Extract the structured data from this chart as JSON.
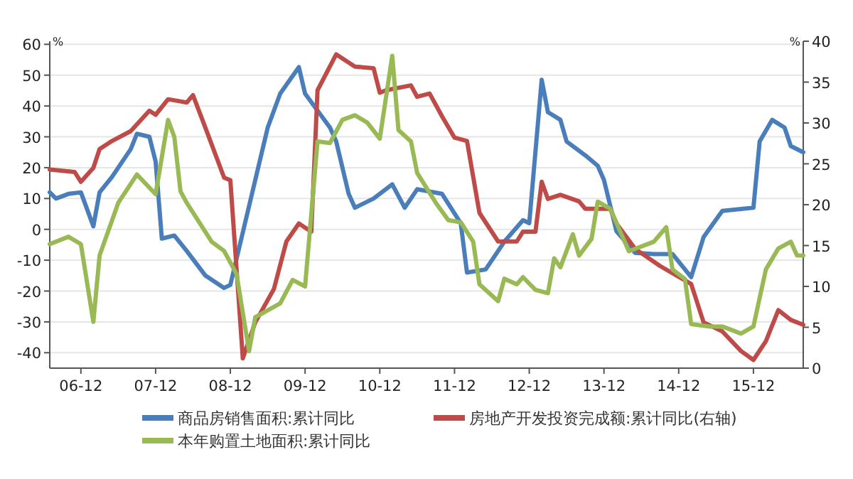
{
  "chart_data": {
    "type": "line",
    "ylabel": "%",
    "y2label": "%",
    "grid": "y",
    "legend": "bottom",
    "marker": "none",
    "line_style": "solid",
    "xlim": [
      "2006-07",
      "2016-08"
    ],
    "xticks": [
      {
        "value": "2006-12",
        "label": "06-12"
      },
      {
        "value": "2007-12",
        "label": "07-12"
      },
      {
        "value": "2008-12",
        "label": "08-12"
      },
      {
        "value": "2009-12",
        "label": "09-12"
      },
      {
        "value": "2010-12",
        "label": "10-12"
      },
      {
        "value": "2011-12",
        "label": "11-12"
      },
      {
        "value": "2012-12",
        "label": "12-12"
      },
      {
        "value": "2013-12",
        "label": "13-12"
      },
      {
        "value": "2014-12",
        "label": "14-12"
      },
      {
        "value": "2015-12",
        "label": "15-12"
      }
    ],
    "ylim": [
      -45,
      61
    ],
    "yticks": [
      -40,
      -30,
      -20,
      -10,
      0,
      10,
      20,
      30,
      40,
      50,
      60
    ],
    "y2lim": [
      0,
      40
    ],
    "y2ticks": [
      0,
      5,
      10,
      15,
      20,
      25,
      30,
      35,
      40
    ],
    "series": [
      {
        "name": "商品房销售面积:累计同比",
        "color": "#4a7ebb",
        "x": [
          "2006-07",
          "2006-08",
          "2006-10",
          "2006-12",
          "2007-02",
          "2007-03",
          "2007-05",
          "2007-08",
          "2007-09",
          "2007-11",
          "2007-12",
          "2008-01",
          "2008-03",
          "2008-05",
          "2008-08",
          "2008-11",
          "2008-12",
          "2009-04",
          "2009-06",
          "2009-08",
          "2009-11",
          "2009-12",
          "2010-04",
          "2010-05",
          "2010-07",
          "2010-08",
          "2010-11",
          "2011-02",
          "2011-04",
          "2011-06",
          "2011-10",
          "2012-01",
          "2012-02",
          "2012-05",
          "2012-08",
          "2012-11",
          "2012-12",
          "2013-02",
          "2013-03",
          "2013-05",
          "2013-06",
          "2013-09",
          "2013-11",
          "2013-12",
          "2014-02",
          "2014-05",
          "2014-08",
          "2014-11",
          "2015-02",
          "2015-04",
          "2015-07",
          "2015-12",
          "2016-01",
          "2016-03",
          "2016-05",
          "2016-06",
          "2016-08"
        ],
        "values": [
          12,
          10,
          11.5,
          12,
          1,
          12,
          17,
          26,
          31,
          30,
          22,
          -3,
          -2,
          -7,
          -15,
          -19,
          -18,
          16,
          33,
          44,
          52.6,
          44,
          33,
          28.5,
          11.5,
          7,
          10,
          14.6,
          7,
          13,
          11.5,
          2,
          -14,
          -13,
          -4,
          3,
          2,
          48.5,
          38,
          35.5,
          28.5,
          24,
          20.6,
          16,
          -0.6,
          -7.6,
          -8,
          -8,
          -15.5,
          -2.5,
          6,
          7,
          28.5,
          35.5,
          33,
          27,
          25
        ]
      },
      {
        "name": "房地产开发投资完成额:累计同比(右轴)",
        "color": "#be4b48",
        "axis": "y2",
        "x": [
          "2006-07",
          "2006-11",
          "2006-12",
          "2007-02",
          "2007-03",
          "2007-05",
          "2007-08",
          "2007-11",
          "2007-12",
          "2008-02",
          "2008-05",
          "2008-06",
          "2008-08",
          "2008-11",
          "2008-12",
          "2009-02",
          "2009-04",
          "2009-07",
          "2009-09",
          "2009-11",
          "2010-01",
          "2010-02",
          "2010-05",
          "2010-08",
          "2010-11",
          "2010-12",
          "2011-01",
          "2011-05",
          "2011-06",
          "2011-08",
          "2011-10",
          "2011-12",
          "2012-02",
          "2012-04",
          "2012-07",
          "2012-10",
          "2012-11",
          "2013-01",
          "2013-02",
          "2013-03",
          "2013-05",
          "2013-08",
          "2013-09",
          "2014-01",
          "2014-02",
          "2014-05",
          "2014-09",
          "2015-02",
          "2015-04",
          "2015-07",
          "2015-10",
          "2015-12",
          "2016-02",
          "2016-04",
          "2016-06",
          "2016-08"
        ],
        "values": [
          24.3,
          24,
          22.8,
          24.5,
          26.8,
          27.8,
          29,
          31.5,
          31,
          32.9,
          32.5,
          33.4,
          29.4,
          23.3,
          23,
          1.2,
          5.6,
          9.7,
          15.5,
          17.7,
          16.7,
          34,
          38.4,
          36.9,
          36.7,
          33.7,
          34,
          34.6,
          33.2,
          33.6,
          30.8,
          28.2,
          27.8,
          19,
          15.5,
          15.5,
          16.7,
          16.7,
          22.8,
          20.7,
          21.2,
          20.4,
          19.5,
          19.5,
          17.7,
          14.6,
          12.5,
          10.3,
          5.6,
          4.5,
          2.1,
          1,
          3.3,
          7.1,
          5.9,
          5.3
        ]
      },
      {
        "name": "本年购置土地面积:累计同比",
        "color": "#98b954",
        "x": [
          "2006-07",
          "2006-10",
          "2006-12",
          "2007-02",
          "2007-03",
          "2007-06",
          "2007-09",
          "2007-12",
          "2008-02",
          "2008-03",
          "2008-04",
          "2008-05",
          "2008-09",
          "2008-11",
          "2009-01",
          "2009-03",
          "2009-04",
          "2009-08",
          "2009-10",
          "2009-12",
          "2010-02",
          "2010-04",
          "2010-06",
          "2010-08",
          "2010-10",
          "2010-12",
          "2011-02",
          "2011-03",
          "2011-05",
          "2011-06",
          "2011-09",
          "2011-11",
          "2012-01",
          "2012-03",
          "2012-04",
          "2012-07",
          "2012-08",
          "2012-10",
          "2012-11",
          "2013-01",
          "2013-03",
          "2013-04",
          "2013-05",
          "2013-07",
          "2013-08",
          "2013-10",
          "2013-11",
          "2014-01",
          "2014-04",
          "2014-08",
          "2014-10",
          "2014-11",
          "2015-01",
          "2015-02",
          "2015-05",
          "2015-07",
          "2015-10",
          "2015-12",
          "2016-02",
          "2016-04",
          "2016-06",
          "2016-07",
          "2016-08"
        ],
        "values": [
          -4.8,
          -2.4,
          -4.8,
          -30,
          -8.5,
          8.6,
          17.8,
          11.4,
          35.5,
          30,
          12.3,
          8.6,
          -4,
          -7,
          -14.5,
          -39.5,
          -28.5,
          -24,
          -16.4,
          -18.5,
          28.5,
          28,
          35.5,
          37,
          34.6,
          29.4,
          56.3,
          32.2,
          28.5,
          18.3,
          8.6,
          3,
          2.3,
          -4,
          -17.8,
          -23.3,
          -16,
          -17.8,
          -15.5,
          -19.6,
          -20.7,
          -9.4,
          -12.3,
          -1.6,
          -8.5,
          -3.1,
          9,
          6.7,
          -7.1,
          -4,
          0.7,
          -13,
          -16.1,
          -30.7,
          -31.5,
          -31.5,
          -33.8,
          -31.5,
          -13,
          -6.2,
          -4,
          -8.5,
          -8.5
        ]
      }
    ]
  }
}
